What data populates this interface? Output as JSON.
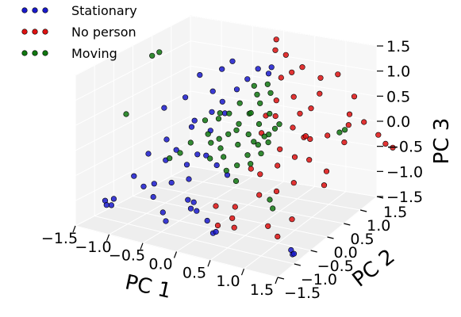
{
  "chart_data": {
    "type": "scatter",
    "projection": "3d",
    "title": "",
    "xlabel": "PC 1",
    "ylabel": "PC 2",
    "zlabel": "PC 3",
    "xlim": [
      -1.5,
      1.5
    ],
    "ylim": [
      -1.5,
      1.5
    ],
    "zlim": [
      -1.5,
      1.5
    ],
    "x_ticks": [
      "−1.5",
      "−1.0",
      "−0.5",
      "0.0",
      "0.5",
      "1.0",
      "1.5"
    ],
    "y_ticks": [
      "−1.5",
      "−1.0",
      "−0.5",
      "0.0",
      "0.5",
      "1.0",
      "1.5"
    ],
    "z_ticks": [
      "−1.5",
      "−1.0",
      "−0.5",
      "0.0",
      "0.5",
      "1.0",
      "1.5"
    ],
    "grid": true,
    "legend_position": "top-left",
    "series": [
      {
        "name": "Stationary",
        "color": "#1a1acc",
        "points": [
          [
            -1.4,
            -0.9,
            -1.2
          ],
          [
            -1.35,
            -0.95,
            -1.25
          ],
          [
            -1.3,
            -0.85,
            -1.15
          ],
          [
            -1.25,
            -1.0,
            -1.2
          ],
          [
            -1.0,
            -0.6,
            -0.9
          ],
          [
            -0.9,
            -0.5,
            -0.85
          ],
          [
            -0.8,
            -0.7,
            -1.0
          ],
          [
            -0.7,
            -0.4,
            -0.8
          ],
          [
            -0.9,
            -0.2,
            -0.5
          ],
          [
            -0.8,
            -0.1,
            -0.3
          ],
          [
            -0.7,
            0.0,
            -0.6
          ],
          [
            -0.6,
            0.1,
            -0.4
          ],
          [
            -0.5,
            -0.3,
            -0.7
          ],
          [
            -0.4,
            -0.5,
            -1.0
          ],
          [
            -0.3,
            -0.6,
            -1.1
          ],
          [
            -0.2,
            -0.7,
            -0.9
          ],
          [
            -0.1,
            -0.8,
            -1.0
          ],
          [
            0.0,
            -0.7,
            -1.2
          ],
          [
            -0.5,
            0.3,
            0.4
          ],
          [
            -0.4,
            0.4,
            0.6
          ],
          [
            -0.3,
            0.6,
            0.8
          ],
          [
            -0.2,
            0.7,
            1.0
          ],
          [
            -0.1,
            0.8,
            1.2
          ],
          [
            0.0,
            0.9,
            1.1
          ],
          [
            0.1,
            0.8,
            1.3
          ],
          [
            -0.6,
            0.5,
            0.7
          ],
          [
            -0.7,
            0.2,
            0.2
          ],
          [
            -0.8,
            0.3,
            0.0
          ],
          [
            -1.0,
            0.0,
            -0.2
          ],
          [
            -1.1,
            -0.3,
            -0.4
          ],
          [
            -0.95,
            0.4,
            0.5
          ],
          [
            -0.85,
            0.6,
            0.9
          ],
          [
            0.2,
            -0.9,
            -1.3
          ],
          [
            0.3,
            -1.0,
            -1.2
          ],
          [
            1.3,
            -0.8,
            -1.3
          ],
          [
            1.35,
            -0.85,
            -1.35
          ],
          [
            1.4,
            -0.9,
            -1.3
          ],
          [
            -0.3,
            -0.2,
            -0.2
          ],
          [
            -0.2,
            -0.1,
            -0.4
          ],
          [
            -0.1,
            0.0,
            -0.6
          ],
          [
            -0.6,
            -0.8,
            -1.2
          ],
          [
            -0.5,
            -0.9,
            -1.3
          ],
          [
            -1.2,
            -0.5,
            -0.8
          ],
          [
            -1.15,
            0.2,
            0.3
          ],
          [
            -0.55,
            0.65,
            1.1
          ],
          [
            -0.45,
            0.75,
            1.25
          ],
          [
            -0.35,
            0.0,
            0.2
          ],
          [
            -0.25,
            0.2,
            0.5
          ]
        ]
      },
      {
        "name": "No person",
        "color": "#dd1111",
        "points": [
          [
            0.3,
            0.3,
            0.6
          ],
          [
            0.4,
            0.4,
            0.9
          ],
          [
            0.5,
            0.2,
            0.7
          ],
          [
            0.6,
            0.5,
            1.0
          ],
          [
            0.7,
            0.3,
            0.5
          ],
          [
            0.8,
            0.6,
            0.8
          ],
          [
            0.9,
            0.4,
            0.3
          ],
          [
            1.0,
            0.2,
            0.0
          ],
          [
            1.1,
            0.5,
            0.4
          ],
          [
            1.2,
            0.3,
            -0.2
          ],
          [
            0.5,
            -0.2,
            -0.3
          ],
          [
            0.6,
            -0.4,
            -0.6
          ],
          [
            0.7,
            -0.1,
            -0.1
          ],
          [
            0.8,
            -0.3,
            -0.5
          ],
          [
            0.9,
            0.0,
            0.1
          ],
          [
            1.0,
            -0.2,
            -0.3
          ],
          [
            0.4,
            0.8,
            1.3
          ],
          [
            0.5,
            0.9,
            1.4
          ],
          [
            0.2,
            1.0,
            1.5
          ],
          [
            0.3,
            0.7,
            1.2
          ],
          [
            0.1,
            0.9,
            1.6
          ],
          [
            0.0,
            1.1,
            1.7
          ],
          [
            0.6,
            1.2,
            1.1
          ],
          [
            0.7,
            1.0,
            0.9
          ],
          [
            1.3,
            1.1,
            0.5
          ],
          [
            1.4,
            1.3,
            0.2
          ],
          [
            1.45,
            1.4,
            0.0
          ],
          [
            1.5,
            1.5,
            -0.1
          ],
          [
            1.2,
            -0.6,
            -0.8
          ],
          [
            1.1,
            -0.8,
            -1.1
          ],
          [
            0.9,
            -0.7,
            -1.0
          ],
          [
            0.3,
            -0.5,
            -0.9
          ],
          [
            0.2,
            -0.4,
            -1.2
          ],
          [
            0.1,
            -0.6,
            -1.3
          ],
          [
            -0.1,
            -0.3,
            -1.1
          ],
          [
            0.4,
            -0.7,
            -1.2
          ],
          [
            1.3,
            0.7,
            0.6
          ],
          [
            1.2,
            0.9,
            0.7
          ],
          [
            1.1,
            1.2,
            0.9
          ],
          [
            0.8,
            1.3,
            1.2
          ],
          [
            0.95,
            0.15,
            0.45
          ],
          [
            0.75,
            0.55,
            0.25
          ],
          [
            0.55,
            0.75,
            0.55
          ],
          [
            0.65,
            0.05,
            0.15
          ],
          [
            1.35,
            0.5,
            0.35
          ],
          [
            1.25,
            0.15,
            -0.4
          ],
          [
            0.45,
            -0.35,
            -0.15
          ],
          [
            0.35,
            0.1,
            0.35
          ]
        ]
      },
      {
        "name": "Moving",
        "color": "#117711",
        "points": [
          [
            -0.2,
            0.2,
            0.1
          ],
          [
            -0.1,
            0.3,
            0.3
          ],
          [
            0.0,
            0.1,
            0.0
          ],
          [
            0.1,
            0.2,
            0.2
          ],
          [
            0.2,
            0.0,
            -0.1
          ],
          [
            0.3,
            0.1,
            0.1
          ],
          [
            -0.3,
            0.4,
            0.4
          ],
          [
            -0.2,
            0.5,
            0.6
          ],
          [
            0.0,
            0.4,
            0.5
          ],
          [
            0.1,
            0.5,
            0.7
          ],
          [
            0.2,
            0.3,
            0.4
          ],
          [
            0.3,
            0.4,
            0.6
          ],
          [
            -0.1,
            -0.1,
            -0.2
          ],
          [
            0.0,
            -0.2,
            -0.4
          ],
          [
            0.1,
            -0.1,
            -0.3
          ],
          [
            0.2,
            -0.3,
            -0.5
          ],
          [
            -0.4,
            0.1,
            -0.1
          ],
          [
            -0.5,
            0.2,
            0.0
          ],
          [
            -0.3,
            -0.1,
            -0.3
          ],
          [
            0.4,
            0.2,
            0.3
          ],
          [
            0.5,
            0.3,
            0.5
          ],
          [
            0.4,
            0.0,
            0.0
          ],
          [
            -0.6,
            0.3,
            0.2
          ],
          [
            -0.7,
            0.1,
            -0.2
          ],
          [
            -0.8,
            0.0,
            -0.4
          ],
          [
            -0.9,
            -0.1,
            -0.5
          ],
          [
            -1.5,
            0.5,
            1.1
          ],
          [
            -1.45,
            0.6,
            1.15
          ],
          [
            -1.6,
            0.0,
            0.1
          ],
          [
            1.45,
            0.2,
            0.7
          ],
          [
            1.5,
            0.25,
            0.75
          ],
          [
            0.7,
            -0.3,
            -0.7
          ],
          [
            0.8,
            -0.4,
            -0.8
          ],
          [
            0.0,
            0.6,
            0.8
          ],
          [
            0.1,
            0.7,
            1.0
          ],
          [
            -0.1,
            0.7,
            0.9
          ],
          [
            0.2,
            0.6,
            0.9
          ],
          [
            -0.2,
            0.0,
            -0.1
          ],
          [
            0.3,
            -0.1,
            -0.2
          ],
          [
            -0.4,
            0.3,
            0.3
          ],
          [
            -0.05,
            0.15,
            0.25
          ],
          [
            0.15,
            0.25,
            0.05
          ],
          [
            0.25,
            0.35,
            0.15
          ],
          [
            -0.25,
            0.05,
            0.05
          ],
          [
            0.35,
            0.45,
            0.3
          ],
          [
            -0.35,
            0.25,
            0.45
          ],
          [
            0.05,
            0.35,
            0.55
          ],
          [
            0.45,
            0.1,
            0.2
          ]
        ]
      }
    ]
  }
}
